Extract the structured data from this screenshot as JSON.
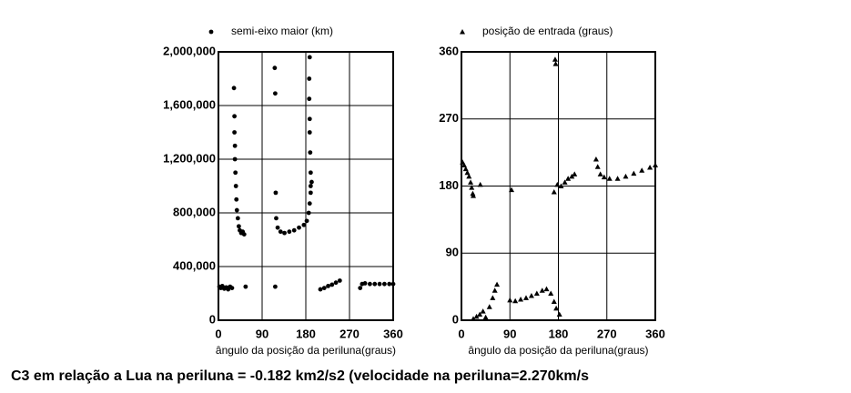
{
  "chart_data": [
    {
      "type": "scatter",
      "xlim": [
        0,
        360
      ],
      "xticks": [
        0,
        90,
        180,
        270,
        360
      ],
      "ylim": [
        0,
        2000000
      ],
      "yticks": [
        0,
        {
          "value": 400000,
          "label": "400,000"
        },
        {
          "value": 800000,
          "label": "800,000"
        },
        {
          "value": 1200000,
          "label": "1,200,000"
        },
        {
          "value": 1600000,
          "label": "1,600,000"
        },
        {
          "value": 2000000,
          "label": "2,000,000"
        }
      ],
      "grid": true,
      "x_label": "ângulo da posição da periluna(graus)",
      "series": [
        {
          "name": "semi-eixo maior (km)",
          "color": "#000000",
          "marker": "dot",
          "x": [
            2,
            5,
            8,
            12,
            16,
            20,
            24,
            28,
            32,
            33,
            33,
            34,
            34,
            35,
            36,
            37,
            38,
            40,
            42,
            44,
            47,
            50,
            53,
            56,
            116,
            117,
            118,
            119,
            117,
            122,
            128,
            136,
            146,
            156,
            166,
            176,
            182,
            186,
            188,
            190,
            192,
            188,
            187,
            187,
            188,
            188,
            189,
            190,
            190,
            210,
            218,
            226,
            234,
            242,
            250,
            292,
            296,
            302,
            312,
            322,
            332,
            342,
            352,
            360
          ],
          "values": [
            250000,
            240000,
            255000,
            235000,
            245000,
            230000,
            250000,
            240000,
            1730000,
            1520000,
            1400000,
            1300000,
            1200000,
            1100000,
            1000000,
            900000,
            820000,
            760000,
            700000,
            670000,
            650000,
            660000,
            640000,
            250000,
            1880000,
            1690000,
            950000,
            760000,
            250000,
            690000,
            660000,
            650000,
            660000,
            670000,
            690000,
            710000,
            740000,
            800000,
            870000,
            950000,
            1030000,
            1960000,
            1800000,
            1650000,
            1500000,
            1400000,
            1250000,
            1100000,
            1000000,
            230000,
            240000,
            255000,
            265000,
            280000,
            295000,
            240000,
            270000,
            275000,
            270000,
            270000,
            270000,
            270000,
            270000,
            270000
          ]
        }
      ]
    },
    {
      "type": "scatter",
      "xlim": [
        0,
        360
      ],
      "xticks": [
        0,
        90,
        180,
        270,
        360
      ],
      "ylim": [
        0,
        360
      ],
      "yticks": [
        0,
        90,
        180,
        270,
        360
      ],
      "grid": true,
      "x_label": "ângulo da posição da periluna(graus)",
      "series": [
        {
          "name": "posição de entrada (graus)",
          "color": "#000000",
          "marker": "triangle",
          "x": [
            2,
            5,
            8,
            11,
            14,
            17,
            19,
            21,
            22,
            35,
            22,
            28,
            34,
            40,
            45,
            52,
            58,
            62,
            66,
            93,
            90,
            100,
            110,
            120,
            130,
            140,
            150,
            158,
            166,
            172,
            176,
            182,
            174,
            175,
            172,
            178,
            185,
            192,
            198,
            205,
            210,
            250,
            253,
            258,
            265,
            275,
            290,
            305,
            320,
            335,
            350,
            360
          ],
          "values": [
            212,
            208,
            203,
            198,
            193,
            185,
            178,
            170,
            167,
            182,
            2,
            5,
            8,
            12,
            4,
            18,
            30,
            40,
            48,
            175,
            27,
            26,
            28,
            30,
            33,
            36,
            40,
            42,
            36,
            25,
            16,
            8,
            350,
            344,
            172,
            182,
            180,
            185,
            190,
            193,
            196,
            216,
            206,
            196,
            192,
            190,
            190,
            193,
            197,
            201,
            205,
            208
          ]
        }
      ]
    }
  ],
  "caption": "C3 em relação a Lua na periluna = -0.182 km2/s2 (velocidade na periluna=2.270km/s"
}
